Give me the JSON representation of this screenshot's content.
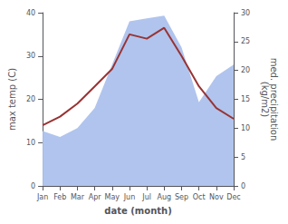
{
  "chart_data": {
    "type": "line",
    "categories": [
      "Jan",
      "Feb",
      "Mar",
      "Apr",
      "May",
      "Jun",
      "Jul",
      "Aug",
      "Sep",
      "Oct",
      "Nov",
      "Dec"
    ],
    "xlabel": "date (month)",
    "ylabel": "max temp (C)",
    "y2label": "med. precipitation\n(kg/m2)",
    "ylim": [
      0,
      40
    ],
    "yticks": [
      0,
      10,
      20,
      30,
      40
    ],
    "y2lim": [
      0,
      30
    ],
    "y2ticks": [
      0,
      5,
      10,
      15,
      20,
      25,
      30
    ],
    "grid": false,
    "series": [
      {
        "type": "area",
        "color": "#b0c4ee",
        "axis": "y2",
        "values": [
          9.5,
          8.5,
          10.0,
          13.5,
          21.0,
          28.5,
          29.0,
          29.5,
          24.0,
          14.5,
          19.0,
          21.0
        ]
      },
      {
        "type": "line",
        "color": "#993333",
        "values": [
          14.0,
          16.0,
          19.0,
          23.0,
          27.0,
          35.0,
          34.0,
          36.5,
          30.0,
          23.0,
          18.0,
          15.5
        ]
      }
    ]
  }
}
